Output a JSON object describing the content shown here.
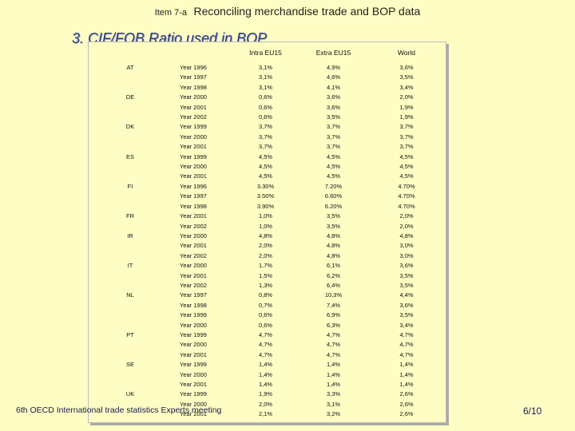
{
  "header": {
    "item_label": "Item 7-a",
    "title": "Reconciling merchandise trade and BOP data"
  },
  "subtitle": "3. CIF/FOB Ratio used in BOP",
  "table": {
    "columns": [
      "",
      "",
      "Intra EU15",
      "Extra EU15",
      "World"
    ],
    "rows": [
      {
        "country": "AT",
        "year": "Year 1996",
        "intra": "3,1%",
        "extra": "4,9%",
        "world": "3,6%"
      },
      {
        "country": "",
        "year": "Year 1997",
        "intra": "3,1%",
        "extra": "4,6%",
        "world": "3,5%"
      },
      {
        "country": "",
        "year": "Year 1998",
        "intra": "3,1%",
        "extra": "4,1%",
        "world": "3,4%"
      },
      {
        "country": "DE",
        "year": "Year 2000",
        "intra": "0,6%",
        "extra": "3,6%",
        "world": "2,0%"
      },
      {
        "country": "",
        "year": "Year 2001",
        "intra": "0,6%",
        "extra": "3,6%",
        "world": "1,9%"
      },
      {
        "country": "",
        "year": "Year 2002",
        "intra": "0,6%",
        "extra": "3,5%",
        "world": "1,9%"
      },
      {
        "country": "DK",
        "year": "Year 1999",
        "intra": "3,7%",
        "extra": "3,7%",
        "world": "3,7%"
      },
      {
        "country": "",
        "year": "Year 2000",
        "intra": "3,7%",
        "extra": "3,7%",
        "world": "3,7%"
      },
      {
        "country": "",
        "year": "Year 2001",
        "intra": "3,7%",
        "extra": "3,7%",
        "world": "3,7%"
      },
      {
        "country": "ES",
        "year": "Year 1999",
        "intra": "4,5%",
        "extra": "4,5%",
        "world": "4,5%"
      },
      {
        "country": "",
        "year": "Year 2000",
        "intra": "4,5%",
        "extra": "4,5%",
        "world": "4,5%"
      },
      {
        "country": "",
        "year": "Year 2001",
        "intra": "4,5%",
        "extra": "4,5%",
        "world": "4,5%"
      },
      {
        "country": "FI",
        "year": "Year 1996",
        "intra": "3.30%",
        "extra": "7.20%",
        "world": "4.70%"
      },
      {
        "country": "",
        "year": "Year 1997",
        "intra": "3.50%",
        "extra": "6.60%",
        "world": "4.70%"
      },
      {
        "country": "",
        "year": "Year 1998",
        "intra": "3.90%",
        "extra": "6.20%",
        "world": "4.70%"
      },
      {
        "country": "FR",
        "year": "Year 2001",
        "intra": "1,0%",
        "extra": "3,5%",
        "world": "2,0%"
      },
      {
        "country": "",
        "year": "Year 2002",
        "intra": "1,0%",
        "extra": "3,5%",
        "world": "2,0%"
      },
      {
        "country": "IR",
        "year": "Year 2000",
        "intra": "4,8%",
        "extra": "4,8%",
        "world": "4,8%"
      },
      {
        "country": "",
        "year": "Year 2001",
        "intra": "2,0%",
        "extra": "4,8%",
        "world": "3,0%"
      },
      {
        "country": "",
        "year": "Year 2002",
        "intra": "2,0%",
        "extra": "4,8%",
        "world": "3,0%"
      },
      {
        "country": "IT",
        "year": "Year 2000",
        "intra": "1,7%",
        "extra": "6,1%",
        "world": "3,6%"
      },
      {
        "country": "",
        "year": "Year 2001",
        "intra": "1,5%",
        "extra": "6,2%",
        "world": "3,5%"
      },
      {
        "country": "",
        "year": "Year 2002",
        "intra": "1,3%",
        "extra": "6,4%",
        "world": "3,5%"
      },
      {
        "country": "NL",
        "year": "Year 1997",
        "intra": "0,8%",
        "extra": "10,3%",
        "world": "4,4%"
      },
      {
        "country": "",
        "year": "Year 1998",
        "intra": "0,7%",
        "extra": "7,4%",
        "world": "3,6%"
      },
      {
        "country": "",
        "year": "Year 1999",
        "intra": "0,6%",
        "extra": "6,9%",
        "world": "3,5%"
      },
      {
        "country": "",
        "year": "Year 2000",
        "intra": "0,6%",
        "extra": "6,3%",
        "world": "3,4%"
      },
      {
        "country": "PT",
        "year": "Year 1999",
        "intra": "4,7%",
        "extra": "4,7%",
        "world": "4,7%"
      },
      {
        "country": "",
        "year": "Year 2000",
        "intra": "4,7%",
        "extra": "4,7%",
        "world": "4,7%"
      },
      {
        "country": "",
        "year": "Year 2001",
        "intra": "4,7%",
        "extra": "4,7%",
        "world": "4,7%"
      },
      {
        "country": "SE",
        "year": "Year 1999",
        "intra": "1,4%",
        "extra": "1,4%",
        "world": "1,4%"
      },
      {
        "country": "",
        "year": "Year 2000",
        "intra": "1,4%",
        "extra": "1,4%",
        "world": "1,4%"
      },
      {
        "country": "",
        "year": "Year 2001",
        "intra": "1,4%",
        "extra": "1,4%",
        "world": "1,4%"
      },
      {
        "country": "UK",
        "year": "Year 1999",
        "intra": "1,9%",
        "extra": "3,3%",
        "world": "2,6%"
      },
      {
        "country": "",
        "year": "Year 2000",
        "intra": "2,0%",
        "extra": "3,1%",
        "world": "2,6%"
      },
      {
        "country": "",
        "year": "Year 2001",
        "intra": "2,1%",
        "extra": "3,2%",
        "world": "2,6%"
      }
    ]
  },
  "footer": {
    "text": "6th OECD International trade statistics Experts meeting",
    "page": "6/10"
  }
}
